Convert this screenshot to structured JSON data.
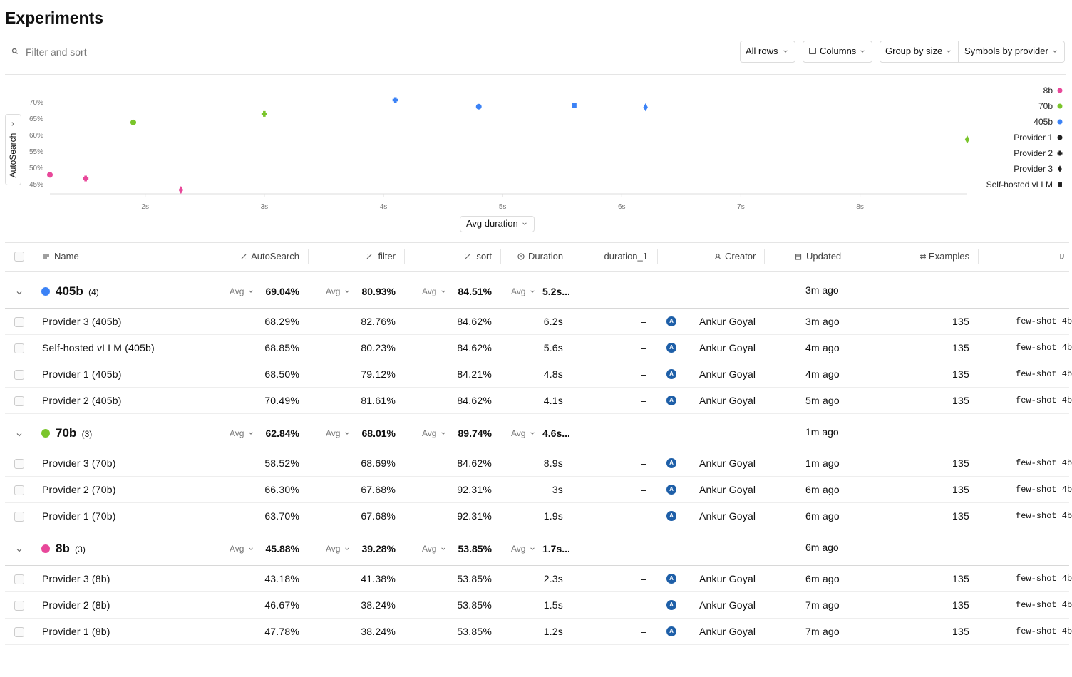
{
  "header": {
    "title": "Experiments"
  },
  "toolbar": {
    "search_placeholder": "Filter and sort",
    "buttons": [
      "All rows",
      "Columns",
      "Group by size",
      "Symbols by provider"
    ]
  },
  "chart_data": {
    "type": "scatter",
    "x_label": "Avg duration",
    "y_label": "AutoSearch",
    "xlim": [
      1.2,
      8.9
    ],
    "ylim": [
      42,
      70.6
    ],
    "xticks": [
      {
        "value": 2,
        "label": "2s"
      },
      {
        "value": 3,
        "label": "3s"
      },
      {
        "value": 4,
        "label": "4s"
      },
      {
        "value": 5,
        "label": "5s"
      },
      {
        "value": 6,
        "label": "6s"
      },
      {
        "value": 7,
        "label": "7s"
      },
      {
        "value": 8,
        "label": "8s"
      }
    ],
    "yticks": [
      {
        "value": 45,
        "label": "45%"
      },
      {
        "value": 50,
        "label": "50%"
      },
      {
        "value": 55,
        "label": "55%"
      },
      {
        "value": 60,
        "label": "60%"
      },
      {
        "value": 65,
        "label": "65%"
      },
      {
        "value": 70,
        "label": "70%"
      }
    ],
    "series": [
      {
        "name": "8b",
        "color": "#e8489a",
        "x": [
          1.2,
          1.5,
          2.3
        ],
        "values": [
          47.78,
          46.67,
          43.18
        ],
        "symbols": [
          "circle",
          "plus",
          "diamond"
        ]
      },
      {
        "name": "70b",
        "color": "#7ac52b",
        "x": [
          1.9,
          3,
          8.9
        ],
        "values": [
          63.7,
          66.3,
          58.52
        ],
        "symbols": [
          "circle",
          "plus",
          "diamond"
        ]
      },
      {
        "name": "405b",
        "color": "#3b82f6",
        "x": [
          4.8,
          4.1,
          6.2,
          5.6
        ],
        "values": [
          68.5,
          70.49,
          68.29,
          68.85
        ],
        "symbols": [
          "circle",
          "plus",
          "diamond",
          "square"
        ]
      }
    ],
    "symbol_legend": [
      {
        "name": "Provider 1",
        "symbol": "circle"
      },
      {
        "name": "Provider 2",
        "symbol": "plus"
      },
      {
        "name": "Provider 3",
        "symbol": "diamond"
      },
      {
        "name": "Self-hosted vLLM",
        "symbol": "square"
      }
    ]
  },
  "table": {
    "columns": [
      "Name",
      "AutoSearch",
      "filter",
      "sort",
      "Duration",
      "duration_1",
      "Creator",
      "Updated",
      "Examples"
    ],
    "groups": [
      {
        "name": "405b",
        "count": "(4)",
        "color": "#3b82f6",
        "avg_label": "Avg",
        "avgs": [
          "69.04%",
          "80.93%",
          "84.51%",
          "5.2s..."
        ],
        "updated": "3m ago",
        "rows": [
          [
            "Provider 3 (405b)",
            "68.29%",
            "82.76%",
            "84.62%",
            "6.2s",
            "–",
            "A",
            "Ankur Goyal",
            "3m ago",
            "135",
            "few-shot 4b"
          ],
          [
            "Self-hosted vLLM (405b)",
            "68.85%",
            "80.23%",
            "84.62%",
            "5.6s",
            "–",
            "A",
            "Ankur Goyal",
            "4m ago",
            "135",
            "few-shot 4b"
          ],
          [
            "Provider 1 (405b)",
            "68.50%",
            "79.12%",
            "84.21%",
            "4.8s",
            "–",
            "A",
            "Ankur Goyal",
            "4m ago",
            "135",
            "few-shot 4b"
          ],
          [
            "Provider 2 (405b)",
            "70.49%",
            "81.61%",
            "84.62%",
            "4.1s",
            "–",
            "A",
            "Ankur Goyal",
            "5m ago",
            "135",
            "few-shot 4b"
          ]
        ]
      },
      {
        "name": "70b",
        "count": "(3)",
        "color": "#7ac52b",
        "avg_label": "Avg",
        "avgs": [
          "62.84%",
          "68.01%",
          "89.74%",
          "4.6s..."
        ],
        "updated": "1m ago",
        "rows": [
          [
            "Provider 3 (70b)",
            "58.52%",
            "68.69%",
            "84.62%",
            "8.9s",
            "–",
            "A",
            "Ankur Goyal",
            "1m ago",
            "135",
            "few-shot 4b"
          ],
          [
            "Provider 2 (70b)",
            "66.30%",
            "67.68%",
            "92.31%",
            "3s",
            "–",
            "A",
            "Ankur Goyal",
            "6m ago",
            "135",
            "few-shot 4b"
          ],
          [
            "Provider 1 (70b)",
            "63.70%",
            "67.68%",
            "92.31%",
            "1.9s",
            "–",
            "A",
            "Ankur Goyal",
            "6m ago",
            "135",
            "few-shot 4b"
          ]
        ]
      },
      {
        "name": "8b",
        "count": "(3)",
        "color": "#e8489a",
        "avg_label": "Avg",
        "avgs": [
          "45.88%",
          "39.28%",
          "53.85%",
          "1.7s..."
        ],
        "updated": "6m ago",
        "rows": [
          [
            "Provider 3 (8b)",
            "43.18%",
            "41.38%",
            "53.85%",
            "2.3s",
            "–",
            "A",
            "Ankur Goyal",
            "6m ago",
            "135",
            "few-shot 4b"
          ],
          [
            "Provider 2 (8b)",
            "46.67%",
            "38.24%",
            "53.85%",
            "1.5s",
            "–",
            "A",
            "Ankur Goyal",
            "7m ago",
            "135",
            "few-shot 4b"
          ],
          [
            "Provider 1 (8b)",
            "47.78%",
            "38.24%",
            "53.85%",
            "1.2s",
            "–",
            "A",
            "Ankur Goyal",
            "7m ago",
            "135",
            "few-shot 4b"
          ]
        ]
      }
    ]
  }
}
